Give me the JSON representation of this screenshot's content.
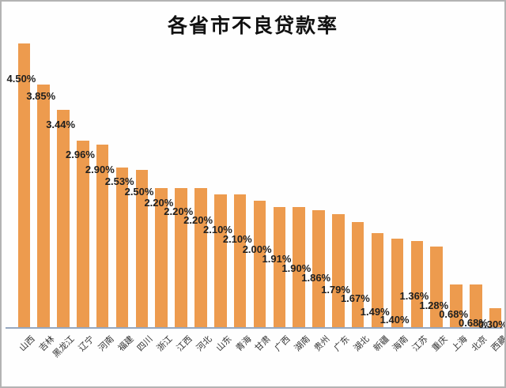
{
  "title": "各省市不良贷款率",
  "chart_data": {
    "type": "bar",
    "title": "各省市不良贷款率",
    "categories": [
      "山西",
      "吉林",
      "黑龙江",
      "辽宁",
      "河南",
      "福建",
      "四川",
      "浙江",
      "江西",
      "河北",
      "山东",
      "青海",
      "甘肃",
      "广西",
      "湖南",
      "贵州",
      "广东",
      "湖北",
      "新疆",
      "海南",
      "江苏",
      "重庆",
      "上海",
      "北京",
      "西藏"
    ],
    "values": [
      4.5,
      3.85,
      3.44,
      2.96,
      2.9,
      2.53,
      2.5,
      2.2,
      2.2,
      2.2,
      2.1,
      2.1,
      2.0,
      1.91,
      1.9,
      1.86,
      1.79,
      1.67,
      1.49,
      1.4,
      1.36,
      1.28,
      0.68,
      0.68,
      0.3
    ],
    "data_labels": [
      "4.50%",
      "3.85%",
      "3.44%",
      "2.96%",
      "2.90%",
      "2.53%",
      "2.50%",
      "2.20%",
      "2.20%",
      "2.20%",
      "2.10%",
      "2.10%",
      "2.00%",
      "1.91%",
      "1.90%",
      "1.86%",
      "1.79%",
      "1.67%",
      "1.49%",
      "1.40%",
      "1.36%",
      "1.28%",
      "0.68%",
      "0.68%",
      "0.30%"
    ],
    "unit": "%",
    "xlabel": "",
    "ylabel": "",
    "ylim": [
      0,
      4.6
    ],
    "grid": false,
    "legend": false,
    "bar_color": "#ED9B4E",
    "axis_line_color": "#96A8C0",
    "label_color": "#1f1f1f",
    "tick_label_color": "#333333"
  }
}
